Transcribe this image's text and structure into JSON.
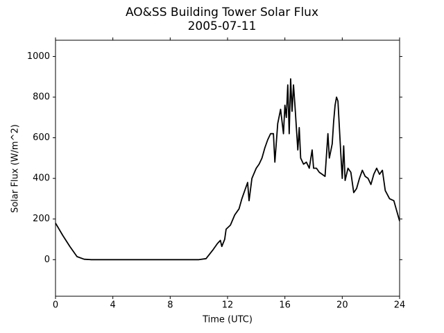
{
  "chart_data": {
    "type": "line",
    "title": "AO&SS Building Tower Solar Flux",
    "subtitle": "2005-07-11",
    "x_label": "Time (UTC)",
    "y_label": "Solar Flux (W/m^2)",
    "xlim": [
      0,
      24
    ],
    "xticks": [
      0,
      4,
      8,
      12,
      16,
      20,
      24
    ],
    "ylim": [
      -180,
      1080
    ],
    "yticks": [
      0,
      200,
      400,
      600,
      800,
      1000
    ],
    "grid": false,
    "series": [
      {
        "color": "#000000",
        "x": [
          0,
          0.5,
          1.0,
          1.5,
          2,
          2.5,
          4,
          6,
          8,
          10,
          10.5,
          11,
          11.3,
          11.5,
          11.6,
          11.8,
          11.9,
          12.2,
          12.5,
          12.8,
          13.0,
          13.2,
          13.4,
          13.5,
          13.7,
          14,
          14.2,
          14.4,
          14.6,
          14.8,
          15.0,
          15.2,
          15.3,
          15.5,
          15.7,
          15.9,
          16.0,
          16.1,
          16.2,
          16.3,
          16.4,
          16.5,
          16.6,
          16.7,
          16.8,
          16.9,
          17.0,
          17.1,
          17.3,
          17.5,
          17.7,
          17.9,
          18.0,
          18.2,
          18.4,
          18.6,
          18.8,
          19.0,
          19.1,
          19.3,
          19.4,
          19.5,
          19.6,
          19.7,
          19.8,
          19.9,
          20.0,
          20.1,
          20.2,
          20.4,
          20.6,
          20.8,
          21.0,
          21.2,
          21.4,
          21.6,
          21.8,
          22.0,
          22.2,
          22.4,
          22.6,
          22.8,
          23.0,
          23.3,
          23.6,
          23.8,
          24
        ],
        "values": [
          180,
          120,
          65,
          15,
          2,
          0,
          0,
          0,
          0,
          0,
          5,
          50,
          80,
          95,
          65,
          100,
          150,
          170,
          220,
          250,
          300,
          340,
          380,
          290,
          400,
          450,
          470,
          500,
          550,
          590,
          620,
          620,
          480,
          670,
          740,
          620,
          760,
          700,
          860,
          620,
          890,
          730,
          860,
          760,
          650,
          540,
          650,
          500,
          470,
          480,
          450,
          540,
          450,
          450,
          430,
          420,
          410,
          620,
          500,
          570,
          680,
          760,
          800,
          780,
          650,
          520,
          400,
          560,
          390,
          450,
          430,
          330,
          350,
          400,
          440,
          410,
          400,
          370,
          420,
          450,
          420,
          440,
          340,
          300,
          290,
          240,
          190
        ]
      }
    ]
  }
}
